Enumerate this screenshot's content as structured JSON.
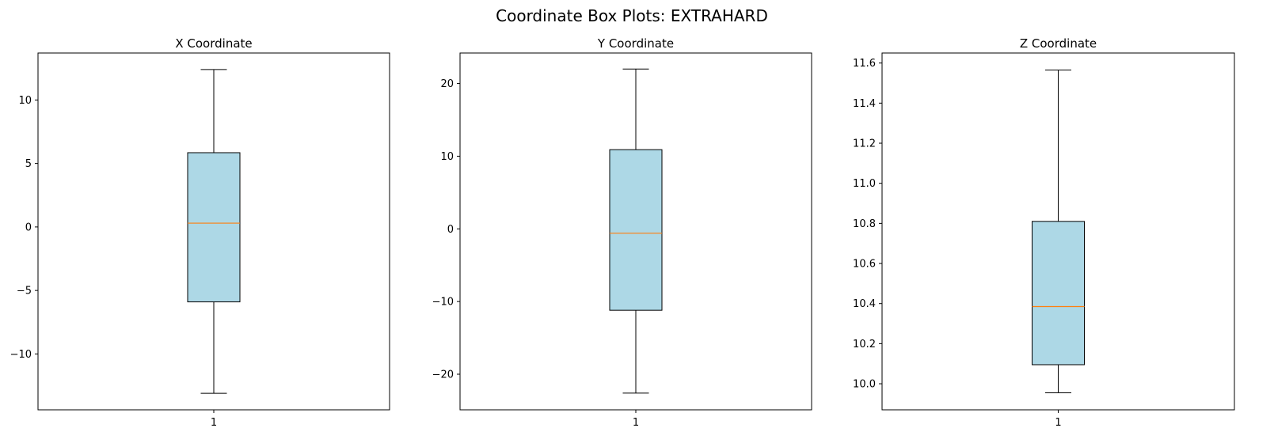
{
  "figure": {
    "title": "Coordinate Box Plots: EXTRAHARD"
  },
  "colors": {
    "box_fill": "#add8e6",
    "median": "#ff7f0e",
    "line": "#000000"
  },
  "chart_data": [
    {
      "type": "box",
      "title": "X Coordinate",
      "categories": [
        "1"
      ],
      "ylim": [
        -14.4,
        13.7
      ],
      "yticks": [
        -10,
        -5,
        0,
        5,
        10
      ],
      "ytick_labels": [
        "−10",
        "−5",
        "0",
        "5",
        "10"
      ],
      "boxes": [
        {
          "label": "1",
          "whisker_low": -13.1,
          "q1": -5.9,
          "median": 0.3,
          "q3": 5.85,
          "whisker_high": 12.4
        }
      ],
      "grid": false
    },
    {
      "type": "box",
      "title": "Y Coordinate",
      "categories": [
        "1"
      ],
      "ylim": [
        -24.9,
        24.2
      ],
      "yticks": [
        -20,
        -10,
        0,
        10,
        20
      ],
      "ytick_labels": [
        "−20",
        "−10",
        "0",
        "10",
        "20"
      ],
      "boxes": [
        {
          "label": "1",
          "whisker_low": -22.6,
          "q1": -11.2,
          "median": -0.6,
          "q3": 10.9,
          "whisker_high": 22.0
        }
      ],
      "grid": false
    },
    {
      "type": "box",
      "title": "Z Coordinate",
      "categories": [
        "1"
      ],
      "ylim": [
        9.87,
        11.65
      ],
      "yticks": [
        10.0,
        10.2,
        10.4,
        10.6,
        10.8,
        11.0,
        11.2,
        11.4,
        11.6
      ],
      "ytick_labels": [
        "10.0",
        "10.2",
        "10.4",
        "10.6",
        "10.8",
        "11.0",
        "11.2",
        "11.4",
        "11.6"
      ],
      "boxes": [
        {
          "label": "1",
          "whisker_low": 9.955,
          "q1": 10.095,
          "median": 10.385,
          "q3": 10.81,
          "whisker_high": 11.565
        }
      ],
      "grid": false
    }
  ]
}
